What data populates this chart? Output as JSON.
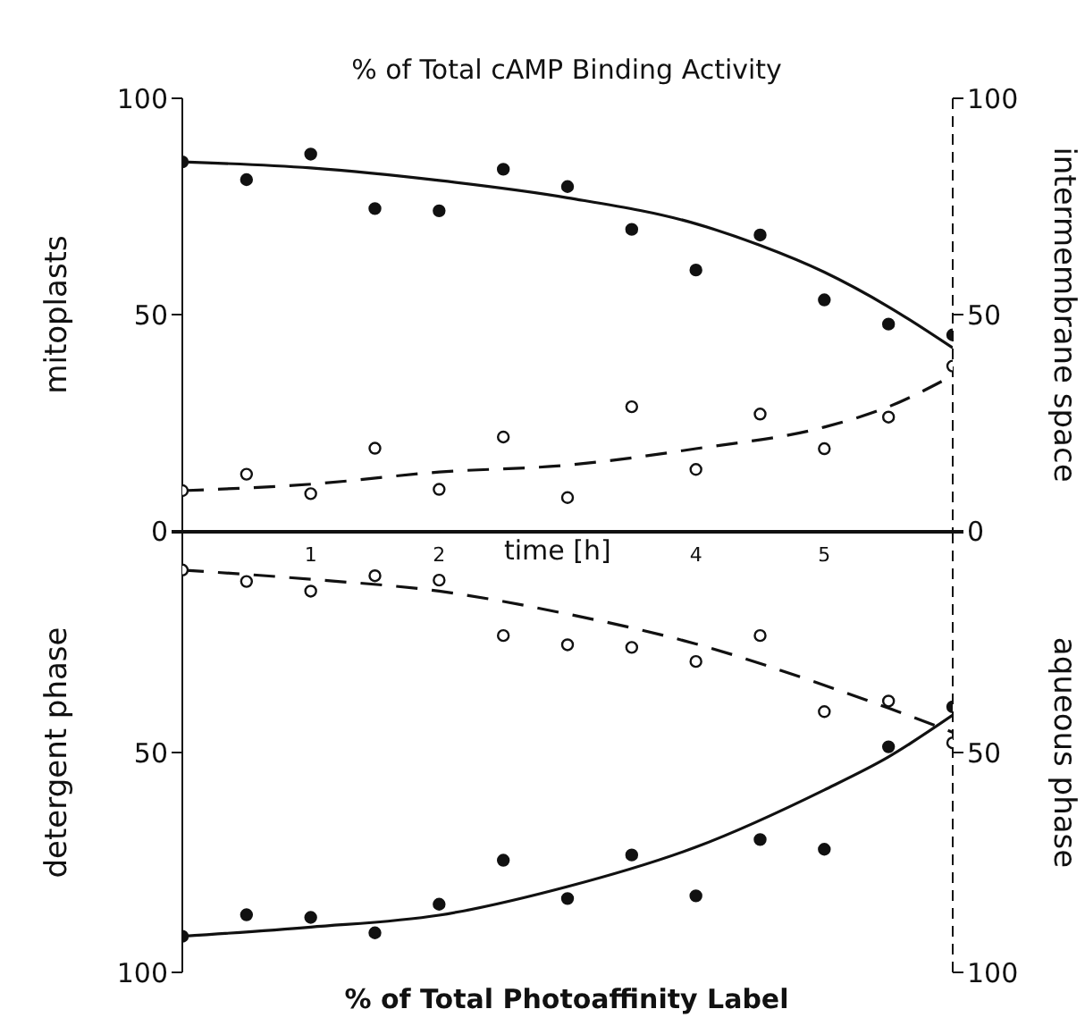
{
  "chart_data": [
    {
      "type": "scatter",
      "title": "% of Total cAMP Binding Activity",
      "ylabel": "mitoplasts",
      "y2label": "intermembrane space",
      "xlim": [
        0,
        6
      ],
      "tick_labels": "y",
      "ylim": [
        0,
        100
      ],
      "yticks": [
        0,
        50,
        100
      ],
      "y2lim": [
        0,
        100
      ],
      "y2ticks": [
        0,
        50,
        100
      ],
      "marker": "circle",
      "series": [
        {
          "type": "scatter",
          "color": "#111111",
          "x": [
            0,
            0.5,
            1,
            1.5,
            2,
            2.5,
            3,
            3.5,
            4,
            4.5,
            5,
            5.5,
            6
          ],
          "values": [
            85.3,
            81.2,
            87.1,
            74.5,
            74,
            83.6,
            79.6,
            69.7,
            60.3,
            68.4,
            53.4,
            47.8,
            45.3
          ]
        },
        {
          "type": "line",
          "line_style": "solid",
          "marker": "none",
          "color": "#111111",
          "x": [
            0,
            1,
            2,
            3,
            4,
            4.5,
            5,
            5.5,
            6
          ],
          "values": [
            85.3,
            83.9,
            81,
            77,
            71,
            66,
            59.8,
            51.8,
            42.3
          ]
        },
        {
          "type": "scatter",
          "axis": "y2",
          "color": "#111111",
          "x": [
            0,
            0.5,
            1,
            1.5,
            2,
            2.5,
            3,
            3.5,
            4,
            4.5,
            5,
            5.5,
            6
          ],
          "values": [
            9.3,
            13.1,
            8.6,
            19.1,
            9.6,
            21.7,
            7.7,
            28.7,
            14.2,
            27,
            19,
            26.3,
            38.1
          ]
        },
        {
          "type": "line",
          "axis": "y2",
          "line_style": "dashed",
          "marker": "none",
          "color": "#111111",
          "x": [
            0,
            1,
            2,
            3,
            4,
            5,
            5.5,
            6
          ],
          "values": [
            9.3,
            10.8,
            13.6,
            15.2,
            19,
            24,
            28.7,
            35.9
          ]
        }
      ]
    },
    {
      "type": "scatter",
      "title": "% of Total Photoaffinity Label",
      "xlabel": "time [h]",
      "ylabel": "detergent phase",
      "y2label": "aqueous phase",
      "xlim": [
        0,
        6
      ],
      "xticks": [
        1,
        2,
        {
          "value": 3,
          "label": null
        },
        4,
        5,
        {
          "value": 6,
          "label": null
        }
      ],
      "ylim": [
        100,
        0
      ],
      "yticks": [
        {
          "value": 0,
          "label": null
        },
        50,
        100
      ],
      "y2lim": [
        100,
        0
      ],
      "y2ticks": [
        {
          "value": 0,
          "label": null
        },
        50,
        100
      ],
      "marker": "circle",
      "series": [
        {
          "type": "scatter",
          "color": "#111111",
          "x": [
            0,
            0.5,
            1,
            1.5,
            2,
            2.5,
            3,
            3.5,
            4,
            4.5,
            5,
            5.5,
            6
          ],
          "values": [
            91.8,
            86.9,
            87.5,
            91,
            84.5,
            74.5,
            83.2,
            73.3,
            82.6,
            69.8,
            72,
            48.7,
            39.6
          ]
        },
        {
          "type": "line",
          "line_style": "solid",
          "marker": "none",
          "color": "#111111",
          "x": [
            0,
            1,
            2,
            3,
            4,
            5,
            5.5,
            6
          ],
          "values": [
            91.8,
            89.7,
            87,
            80.5,
            71.5,
            58.5,
            51,
            41.5
          ]
        },
        {
          "type": "scatter",
          "axis": "y2",
          "color": "#111111",
          "x": [
            0,
            0.5,
            1,
            1.5,
            2,
            2.5,
            3,
            3.5,
            4,
            4.5,
            5,
            5.5,
            6
          ],
          "values": [
            8.5,
            11.1,
            13.3,
            9.8,
            10.8,
            23.4,
            25.5,
            26.1,
            29.3,
            23.4,
            40.7,
            38.3,
            47.8
          ]
        },
        {
          "type": "line",
          "axis": "y2",
          "line_style": "dashed",
          "marker": "none",
          "color": "#111111",
          "x": [
            0,
            1,
            2,
            3,
            4,
            5,
            5.5,
            6
          ],
          "values": [
            8.5,
            10.6,
            13.3,
            18.5,
            25.3,
            34.7,
            39.9,
            45.4
          ]
        }
      ]
    }
  ]
}
